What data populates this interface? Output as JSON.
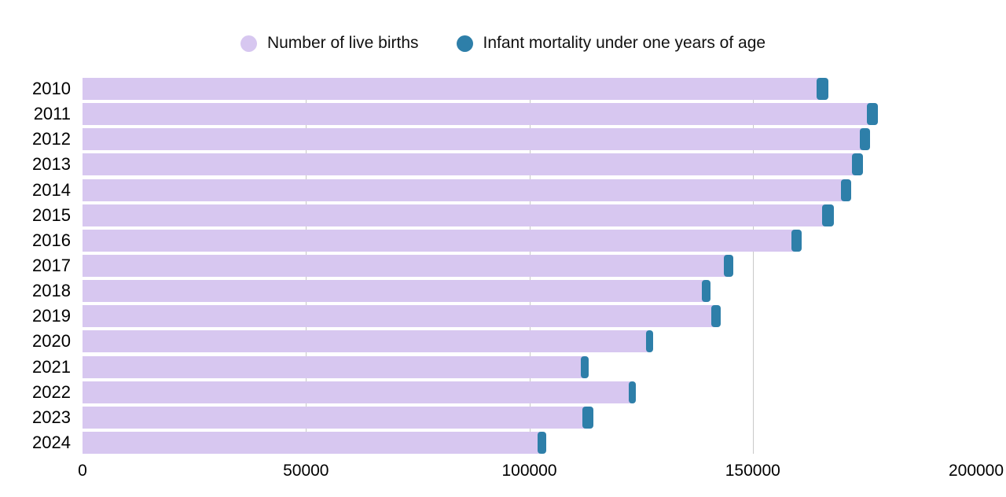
{
  "legend": {
    "items": [
      {
        "label": "Number of live births",
        "color": "#d7c7f0"
      },
      {
        "label": "Infant mortality under one years of age",
        "color": "#2e7fa9"
      }
    ]
  },
  "chart_data": {
    "type": "bar",
    "orientation": "horizontal",
    "stacked": true,
    "title": "",
    "xlabel": "",
    "ylabel": "",
    "categories": [
      "2010",
      "2011",
      "2012",
      "2013",
      "2014",
      "2015",
      "2016",
      "2017",
      "2018",
      "2019",
      "2020",
      "2021",
      "2022",
      "2023",
      "2024"
    ],
    "series": [
      {
        "name": "Number of live births",
        "color": "#d7c7f0",
        "values": [
          164800,
          176000,
          174400,
          172700,
          170200,
          166100,
          159100,
          144000,
          139200,
          141200,
          126600,
          112100,
          122700,
          112400,
          102300
        ]
      },
      {
        "name": "Infant mortality under one years of age",
        "color": "#2e7fa9",
        "values": [
          2100,
          2100,
          1900,
          1900,
          1800,
          2000,
          1900,
          1600,
          1300,
          1600,
          1200,
          1100,
          1200,
          2000,
          1400
        ]
      }
    ],
    "x_axis": {
      "min": 0,
      "max": 200000,
      "ticks": [
        0,
        50000,
        100000,
        150000,
        200000
      ],
      "tick_labels": [
        "0",
        "50000",
        "100000",
        "150000",
        "200000"
      ],
      "gridlines": [
        50000,
        100000,
        150000
      ]
    },
    "legend_position": "top",
    "grid": "vertical-only",
    "colors": {
      "grid": "#c8c8c8",
      "text": "#000000",
      "background": "#ffffff"
    }
  }
}
